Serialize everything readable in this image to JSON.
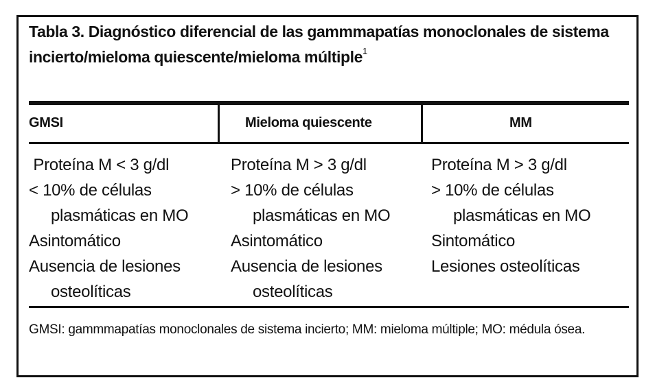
{
  "title": {
    "text": "Tabla 3. Diagnóstico diferencial de las gammmapatías monoclonales de sistema incierto/mieloma quiescente/mieloma múltiple",
    "superscript": "1"
  },
  "table": {
    "headers": [
      "GMSI",
      "Mieloma quiescente",
      "MM"
    ],
    "columns": [
      [
        {
          "text": " Proteína M < 3 g/dl",
          "indent": false
        },
        {
          "text": "< 10% de células",
          "indent": false
        },
        {
          "text": "plasmáticas en MO",
          "indent": true
        },
        {
          "text": "Asintomático",
          "indent": false
        },
        {
          "text": "Ausencia de lesiones",
          "indent": false
        },
        {
          "text": "osteolíticas",
          "indent": true
        }
      ],
      [
        {
          "text": "Proteína M > 3 g/dl",
          "indent": false
        },
        {
          "text": "> 10% de células",
          "indent": false
        },
        {
          "text": "plasmáticas en MO",
          "indent": true
        },
        {
          "text": "Asintomático",
          "indent": false
        },
        {
          "text": "Ausencia de lesiones",
          "indent": false
        },
        {
          "text": "osteolíticas",
          "indent": true
        }
      ],
      [
        {
          "text": "Proteína M > 3 g/dl",
          "indent": false
        },
        {
          "text": "> 10% de células",
          "indent": false
        },
        {
          "text": "plasmáticas en MO",
          "indent": true
        },
        {
          "text": "Sintomático",
          "indent": false
        },
        {
          "text": "Lesiones osteolíticas",
          "indent": false
        }
      ]
    ]
  },
  "footnote": "GMSI: gammmapatías monoclonales de sistema incierto; MM: mieloma múltiple; MO: médula ósea."
}
